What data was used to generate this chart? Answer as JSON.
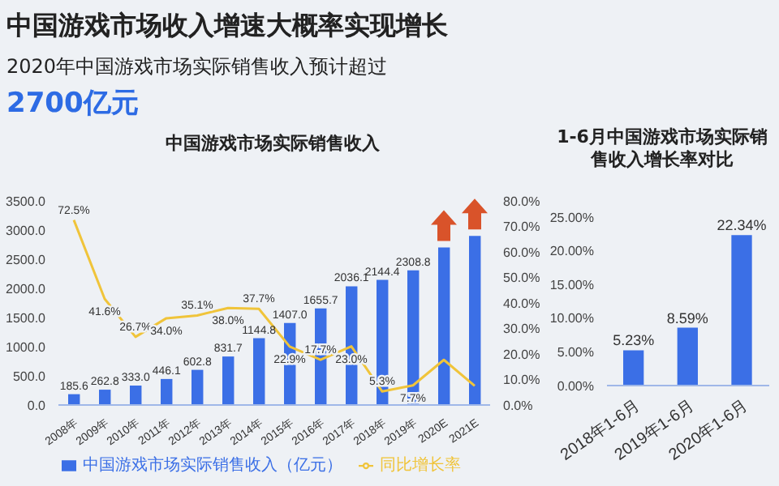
{
  "chart_data": [
    {
      "type": "other",
      "title": "中国游戏市场收入增速大概率实现增长",
      "subtitle": "2020年中国游戏市场实际销售收入预计超过",
      "annotations": [
        "2700亿元"
      ]
    },
    {
      "type": "bar",
      "title": "中国游戏市场实际销售收入",
      "categories": [
        "2008年",
        "2009年",
        "2010年",
        "2011年",
        "2012年",
        "2013年",
        "2014年",
        "2015年",
        "2016年",
        "2017年",
        "2018年",
        "2019年",
        "2020E",
        "2021E"
      ],
      "series": [
        {
          "name": "中国游戏市场实际销售收入（亿元）",
          "type": "bar",
          "color": "#3b6fe6",
          "values": [
            185.6,
            262.8,
            333.0,
            446.1,
            602.8,
            831.7,
            1144.8,
            1407.0,
            1655.7,
            2036.1,
            2144.4,
            2308.8,
            2700,
            2900
          ],
          "value_labels": [
            "185.6",
            "262.8",
            "333.0",
            "446.1",
            "602.8",
            "831.7",
            "1144.8",
            "1407.0",
            "1655.7",
            "2036.1",
            "2144.4",
            "2308.8",
            null,
            null
          ]
        },
        {
          "name": "同比增长率",
          "type": "line",
          "axis": "y2",
          "color": "#f0c43a",
          "values": [
            72.5,
            41.6,
            26.7,
            34.0,
            35.1,
            38.0,
            37.7,
            22.9,
            17.7,
            23.0,
            5.3,
            7.7,
            17.7,
            7.5
          ],
          "value_labels": [
            "72.5%",
            "41.6%",
            "26.7%",
            "34.0%",
            "35.1%",
            "38.0%",
            "37.7%",
            "22.9%",
            "17.7%",
            "23.0%",
            "5.3%",
            "7.7%",
            null,
            null
          ]
        }
      ],
      "ylim": [
        0,
        3500
      ],
      "yticks": [
        {
          "value": 0,
          "label": "0.0"
        },
        {
          "value": 500,
          "label": "500.0"
        },
        {
          "value": 1000,
          "label": "1000.0"
        },
        {
          "value": 1500,
          "label": "1500.0"
        },
        {
          "value": 2000,
          "label": "2000.0"
        },
        {
          "value": 2500,
          "label": "2500.0"
        },
        {
          "value": 3000,
          "label": "3000.0"
        },
        {
          "value": 3500,
          "label": "3500.0"
        }
      ],
      "y2lim": [
        0,
        80
      ],
      "y2ticks": [
        {
          "value": 0,
          "label": "0.0%"
        },
        {
          "value": 10,
          "label": "10.0%"
        },
        {
          "value": 20,
          "label": "20.0%"
        },
        {
          "value": 30,
          "label": "30.0%"
        },
        {
          "value": 40,
          "label": "40.0%"
        },
        {
          "value": 50,
          "label": "50.0%"
        },
        {
          "value": 60,
          "label": "60.0%"
        },
        {
          "value": 70,
          "label": "70.0%"
        },
        {
          "value": 80,
          "label": "80.0%"
        }
      ],
      "legend": "bottom",
      "marker": "none",
      "grid": false
    },
    {
      "type": "bar",
      "title": "1-6月中国游戏市场实际销售收入增长率对比",
      "categories": [
        "2018年1-6月",
        "2019年1-6月",
        "2020年1-6月"
      ],
      "series": [
        {
          "color": "#3b6fe6",
          "values": [
            5.23,
            8.59,
            22.34
          ],
          "value_labels": [
            "5.23%",
            "8.59%",
            "22.34%"
          ]
        }
      ],
      "ylim": [
        0,
        25
      ],
      "yticks": [
        {
          "value": 0,
          "label": "0.00%"
        },
        {
          "value": 5,
          "label": "5.00%"
        },
        {
          "value": 10,
          "label": "10.00%"
        },
        {
          "value": 15,
          "label": "15.00%"
        },
        {
          "value": 20,
          "label": "20.00%"
        },
        {
          "value": 25,
          "label": "25.00%"
        }
      ],
      "grid": false
    }
  ]
}
